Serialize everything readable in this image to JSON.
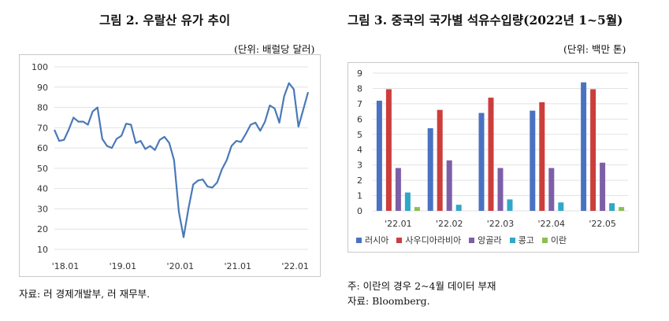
{
  "figure2": {
    "title": "그림 2. 우랄산 유가 추이",
    "unit": "(단위: 배럴당 달러)",
    "source": "자료: 러 경제개발부, 러 재무부."
  },
  "figure3": {
    "title": "그림 3. 중국의 국가별 석유수입량(2022년 1~5월)",
    "unit": "(단위: 백만 톤)",
    "note": "주: 이란의 경우 2~4월 데이터 부재",
    "source": "자료: Bloomberg."
  },
  "chart_data": [
    {
      "type": "line",
      "title": "그림 2. 우랄산 유가 추이",
      "xlabel": "",
      "ylabel": "",
      "ylim": [
        10,
        100
      ],
      "yticks": [
        10,
        20,
        30,
        40,
        50,
        60,
        70,
        80,
        90,
        100
      ],
      "xticks": [
        {
          "label": "'18.01",
          "index": 0
        },
        {
          "label": "'19.01",
          "index": 12
        },
        {
          "label": "'20.01",
          "index": 24
        },
        {
          "label": "'21.01",
          "index": 36
        },
        {
          "label": "'22.01",
          "index": 48
        }
      ],
      "grid": "horizontal",
      "color": "#4a79b8",
      "series": [
        {
          "values": [
            69,
            63.5,
            64,
            69,
            75,
            73,
            73,
            71.5,
            78,
            80,
            64.5,
            61,
            60,
            64.5,
            66,
            72,
            71.5,
            62.5,
            63.5,
            59.5,
            61,
            59,
            64,
            65.5,
            62.5,
            54,
            28.5,
            16,
            30,
            42,
            44,
            44.5,
            41,
            40.5,
            43,
            49.5,
            54,
            61,
            63.5,
            63,
            67,
            71.5,
            72.5,
            68.5,
            73,
            81,
            79.5,
            72.5,
            85.5,
            92,
            89,
            70.5,
            79,
            87.5
          ]
        }
      ]
    },
    {
      "type": "bar",
      "title": "그림 3. 중국의 국가별 석유수입량(2022년 1~5월)",
      "xlabel": "",
      "ylabel": "",
      "ylim": [
        0,
        9
      ],
      "yticks": [
        0,
        1,
        2,
        3,
        4,
        5,
        6,
        7,
        8,
        9
      ],
      "grid": "horizontal",
      "legend": "bottom",
      "categories": [
        "'22.01",
        "'22.02",
        "'22.03",
        "'22.04",
        "'22.05"
      ],
      "series": [
        {
          "name": "러시아",
          "color": "#4a72c2",
          "values": [
            7.2,
            5.4,
            6.4,
            6.55,
            8.4
          ]
        },
        {
          "name": "사우디아라비아",
          "color": "#cc3e3c",
          "values": [
            7.95,
            6.6,
            7.4,
            7.1,
            7.95
          ]
        },
        {
          "name": "앙골라",
          "color": "#7d5fa8",
          "values": [
            2.8,
            3.3,
            2.8,
            2.8,
            3.15
          ]
        },
        {
          "name": "콩고",
          "color": "#2fa8c9",
          "values": [
            1.2,
            0.4,
            0.75,
            0.55,
            0.5
          ]
        },
        {
          "name": "이란",
          "color": "#8cbf4e",
          "values": [
            0.25,
            null,
            null,
            null,
            0.25
          ]
        }
      ]
    }
  ]
}
